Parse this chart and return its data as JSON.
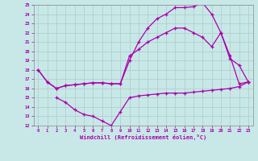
{
  "xlabel": "Windchill (Refroidissement éolien,°C)",
  "xlim": [
    -0.5,
    23.5
  ],
  "ylim": [
    12,
    25
  ],
  "xticks": [
    0,
    1,
    2,
    3,
    4,
    5,
    6,
    7,
    8,
    9,
    10,
    11,
    12,
    13,
    14,
    15,
    16,
    17,
    18,
    19,
    20,
    21,
    22,
    23
  ],
  "yticks": [
    12,
    13,
    14,
    15,
    16,
    17,
    18,
    19,
    20,
    21,
    22,
    23,
    24,
    25
  ],
  "background_color": "#c8e8e8",
  "line_color": "#aa00aa",
  "grid_color": "#b0d0d0",
  "lines": [
    {
      "x": [
        0,
        1,
        2,
        3,
        4,
        5,
        6,
        7,
        8,
        9,
        10,
        11,
        12,
        13,
        14,
        15,
        16,
        17,
        18,
        19,
        20,
        21,
        22,
        23
      ],
      "y": [
        18,
        16.7,
        16.0,
        16.3,
        16.4,
        16.5,
        16.6,
        16.6,
        16.5,
        16.5,
        19.0,
        21.0,
        22.5,
        23.5,
        24.0,
        24.7,
        24.7,
        24.8,
        25.2,
        24.0,
        22.0,
        19.2,
        18.5,
        16.7
      ]
    },
    {
      "x": [
        0,
        1,
        2,
        3,
        4,
        5,
        6,
        7,
        8,
        9,
        10,
        11,
        12,
        13,
        14,
        15,
        16,
        17,
        18,
        19,
        20,
        21,
        22,
        23
      ],
      "y": [
        18,
        16.7,
        16.0,
        16.3,
        16.4,
        16.5,
        16.6,
        16.6,
        16.5,
        16.5,
        19.5,
        20.2,
        21.0,
        21.5,
        22.0,
        22.5,
        22.5,
        22.0,
        21.5,
        20.5,
        22.0,
        19.5,
        16.5,
        16.7
      ]
    },
    {
      "x": [
        2,
        3,
        4,
        5,
        6,
        7,
        8,
        9,
        10,
        11,
        12,
        13,
        14,
        15,
        16,
        17,
        18,
        19,
        20,
        21,
        22,
        23
      ],
      "y": [
        15.0,
        14.5,
        13.7,
        13.2,
        13.0,
        12.5,
        12.0,
        13.5,
        15.0,
        15.2,
        15.3,
        15.4,
        15.5,
        15.5,
        15.5,
        15.6,
        15.7,
        15.8,
        15.9,
        16.0,
        16.2,
        16.7
      ]
    }
  ]
}
